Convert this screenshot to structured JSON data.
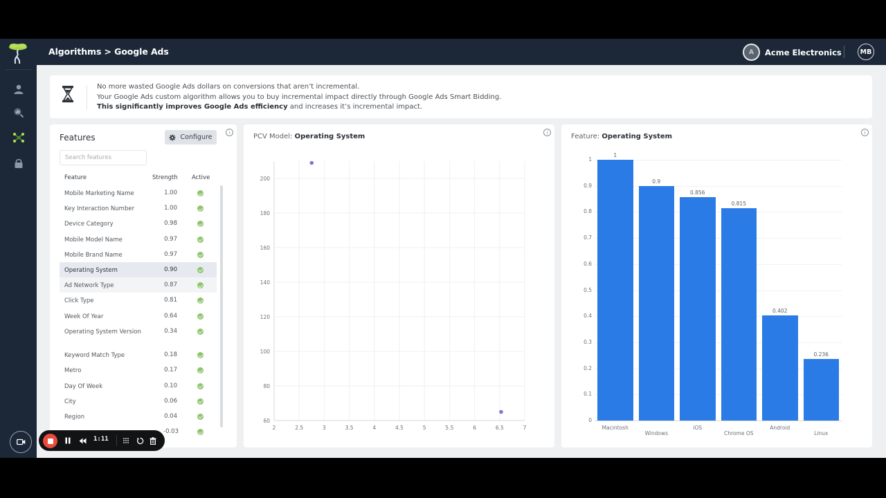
{
  "header": {
    "breadcrumb": "Algorithms > Google Ads",
    "org_initial": "A",
    "org_name": "Acme Electronics",
    "user_initials": "MB"
  },
  "sidebar": {
    "items": [
      {
        "name": "user-icon",
        "active": false
      },
      {
        "name": "analytics-search-icon",
        "active": false
      },
      {
        "name": "network-icon",
        "active": true
      },
      {
        "name": "lock-icon",
        "active": false
      }
    ]
  },
  "banner": {
    "line1": "No more wasted Google Ads dollars on conversions that aren’t incremental.",
    "line2": "Your Google Ads custom algorithm allows you to buy incremental impact directly through Google Ads Smart Bidding.",
    "line3_bold": "This significantly improves Google Ads efficiency",
    "line3_rest": " and increases it’s incremental impact."
  },
  "features": {
    "title": "Features",
    "configure_label": "Configure",
    "search_placeholder": "Search features",
    "columns": {
      "feature": "Feature",
      "strength": "Strength",
      "active": "Active"
    },
    "rows": [
      {
        "name": "Mobile Marketing Name",
        "strength": "1.00",
        "active": true
      },
      {
        "name": "Key Interaction Number",
        "strength": "1.00",
        "active": true
      },
      {
        "name": "Device Category",
        "strength": "0.98",
        "active": true
      },
      {
        "name": "Mobile Model Name",
        "strength": "0.97",
        "active": true
      },
      {
        "name": "Mobile Brand Name",
        "strength": "0.97",
        "active": true
      },
      {
        "name": "Operating System",
        "strength": "0.90",
        "active": true,
        "selected": true
      },
      {
        "name": "Ad Network Type",
        "strength": "0.87",
        "active": true,
        "hover": true
      },
      {
        "name": "Click Type",
        "strength": "0.81",
        "active": true
      },
      {
        "name": "Week Of Year",
        "strength": "0.64",
        "active": true
      },
      {
        "name": "Operating System Version",
        "strength": "0.34",
        "active": true,
        "tall": true
      },
      {
        "name": "Keyword Match Type",
        "strength": "0.18",
        "active": true
      },
      {
        "name": "Metro",
        "strength": "0.17",
        "active": true
      },
      {
        "name": "Day Of Week",
        "strength": "0.10",
        "active": true
      },
      {
        "name": "City",
        "strength": "0.06",
        "active": true
      },
      {
        "name": "Region",
        "strength": "0.04",
        "active": true
      },
      {
        "name": "",
        "strength": "-0.03",
        "active": true
      }
    ]
  },
  "pcv_chart": {
    "title_prefix": "PCV Model: ",
    "title_feature": "Operating System"
  },
  "feature_chart": {
    "title_prefix": "Feature: ",
    "title_feature": "Operating System"
  },
  "recorder": {
    "time": "1:11"
  },
  "colors": {
    "sidebar_bg": "#1c2838",
    "bar_blue": "#2b7be6",
    "scatter_point": "#8a6fd1",
    "active_green": "#8dc56e",
    "record_red": "#ea4b3c"
  },
  "chart_data": [
    {
      "type": "scatter",
      "title": "PCV Model: Operating System",
      "xlabel": "",
      "ylabel": "",
      "x": [
        2.75,
        6.53
      ],
      "y": [
        209,
        65
      ],
      "xlim": [
        2,
        7
      ],
      "ylim": [
        60,
        210
      ],
      "xticks": [
        "2",
        "2.5",
        "3",
        "3.5",
        "4",
        "4.5",
        "5",
        "5.5",
        "6",
        "6.5",
        "7"
      ],
      "yticks": [
        "60",
        "80",
        "100",
        "120",
        "140",
        "160",
        "180",
        "200"
      ],
      "grid": true,
      "point_color": "#8a6fd1"
    },
    {
      "type": "bar",
      "title": "Feature: Operating System",
      "categories": [
        "Macintosh",
        "Windows",
        "iOS",
        "Chrome OS",
        "Android",
        "Linux"
      ],
      "values": [
        1,
        0.9,
        0.856,
        0.815,
        0.402,
        0.236
      ],
      "value_labels": [
        "1",
        "0.9",
        "0.856",
        "0.815",
        "0.402",
        "0.236"
      ],
      "xlabel": "",
      "ylabel": "",
      "ylim": [
        0,
        1
      ],
      "yticks": [
        "0",
        "0.1",
        "0.2",
        "0.3",
        "0.4",
        "0.5",
        "0.6",
        "0.7",
        "0.8",
        "0.9",
        "1"
      ],
      "grid": true,
      "bar_color": "#2b7be6"
    }
  ]
}
